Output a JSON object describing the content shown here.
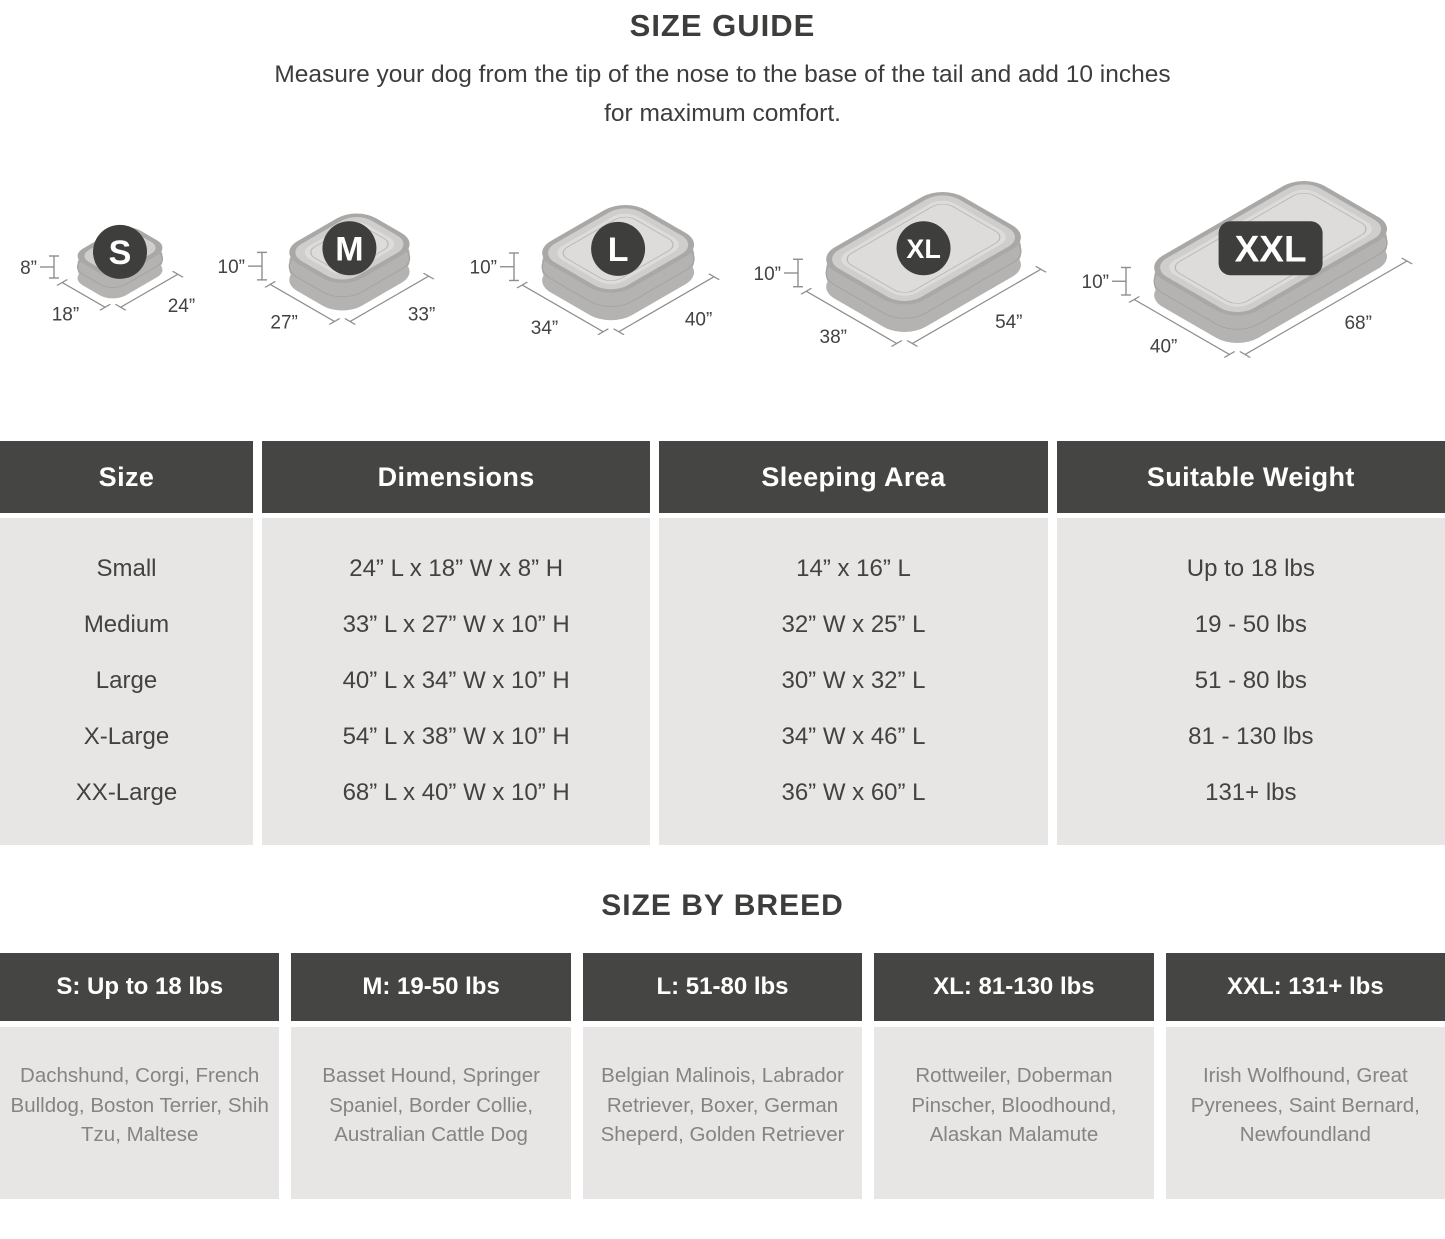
{
  "header": {
    "title": "SIZE GUIDE",
    "subtitle": "Measure your dog from the tip of the nose to the base of the tail and add 10 inches for maximum comfort."
  },
  "beds": [
    {
      "label": "S",
      "badge_shape": "circle",
      "height_in": 8,
      "width_in": 18,
      "length_in": 24,
      "height_label": "8”",
      "width_label": "18”",
      "length_label": "24”"
    },
    {
      "label": "M",
      "badge_shape": "circle",
      "height_in": 10,
      "width_in": 27,
      "length_in": 33,
      "height_label": "10”",
      "width_label": "27”",
      "length_label": "33”"
    },
    {
      "label": "L",
      "badge_shape": "circle",
      "height_in": 10,
      "width_in": 34,
      "length_in": 40,
      "height_label": "10”",
      "width_label": "34”",
      "length_label": "40”"
    },
    {
      "label": "XL",
      "badge_shape": "circle",
      "height_in": 10,
      "width_in": 38,
      "length_in": 54,
      "height_label": "10”",
      "width_label": "38”",
      "length_label": "54”"
    },
    {
      "label": "XXL",
      "badge_shape": "rect",
      "height_in": 10,
      "width_in": 40,
      "length_in": 68,
      "height_label": "10”",
      "width_label": "40”",
      "length_label": "68”"
    }
  ],
  "size_table": {
    "columns": [
      "Size",
      "Dimensions",
      "Sleeping Area",
      "Suitable Weight"
    ],
    "rows": [
      [
        "Small",
        "24” L x 18” W x 8” H",
        "14” x 16” L",
        "Up to 18 lbs"
      ],
      [
        "Medium",
        "33” L x 27” W x 10” H",
        "32” W x 25” L",
        "19 - 50 lbs"
      ],
      [
        "Large",
        "40” L x 34” W x 10” H",
        "30” W x 32” L",
        "51 - 80 lbs"
      ],
      [
        "X-Large",
        "54” L x 38” W x 10” H",
        "34” W x 46” L",
        "81 - 130 lbs"
      ],
      [
        "XX-Large",
        "68” L x 40” W x 10” H",
        "36” W x 60” L",
        "131+ lbs"
      ]
    ]
  },
  "breed_section": {
    "title": "SIZE BY BREED",
    "columns": [
      {
        "header": "S: Up to 18 lbs",
        "breeds": "Dachshund, Corgi, French Bulldog, Boston Terrier, Shih Tzu, Maltese"
      },
      {
        "header": "M: 19-50 lbs",
        "breeds": "Basset Hound, Springer Spaniel, Border Collie, Australian Cattle Dog"
      },
      {
        "header": "L: 51-80 lbs",
        "breeds": "Belgian Malinois, Labrador Retriever, Boxer, German Sheperd, Golden Retriever"
      },
      {
        "header": "XL: 81-130 lbs",
        "breeds": "Rottweiler, Doberman Pinscher, Bloodhound, Alaskan Malamute"
      },
      {
        "header": "XXL: 131+ lbs",
        "breeds": "Irish Wolfhound, Great Pyrenees, Saint Bernard, Newfoundland"
      }
    ]
  },
  "colors": {
    "header_bg": "#454543",
    "body_bg": "#e7e6e5",
    "badge": "#3e3e3c",
    "bed_side": "#b4b3b1",
    "bed_seam": "#a2a19f",
    "bed_rim": "#a9a8a6",
    "bed_wall": "#cfcecc",
    "bed_cushion": "#dddcda",
    "bed_hairline": "#b8b7b5",
    "dim": "#8f8e8d",
    "title_text": "#3d3d3c",
    "table_text": "#424241",
    "breed_text": "#858483"
  }
}
